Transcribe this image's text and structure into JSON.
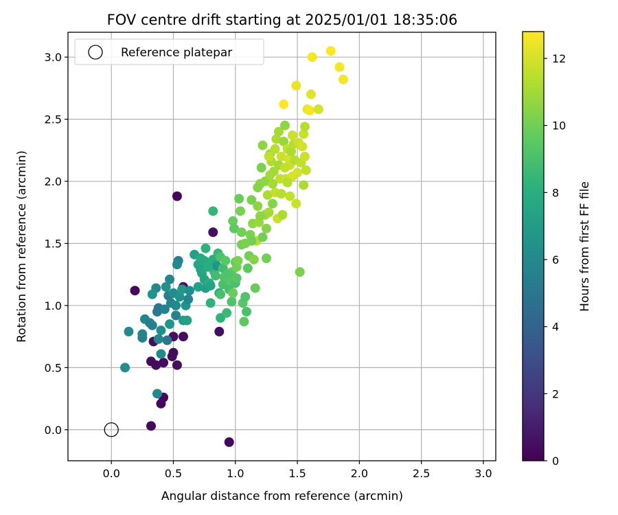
{
  "chart_data": {
    "type": "scatter",
    "title": "FOV centre drift starting at 2025/01/01 18:35:06",
    "xlabel": "Angular distance from reference (arcmin)",
    "ylabel": "Rotation from reference (arcmin)",
    "xlim": [
      -0.35,
      3.1
    ],
    "ylim": [
      -0.25,
      3.2
    ],
    "x_ticks": [
      "0.0",
      "0.5",
      "1.0",
      "1.5",
      "2.0",
      "2.5",
      "3.0"
    ],
    "y_ticks": [
      "0.0",
      "0.5",
      "1.0",
      "1.5",
      "2.0",
      "2.5",
      "3.0"
    ],
    "grid": true,
    "legend": {
      "position": "top-left",
      "entries": [
        "Reference platepar"
      ]
    },
    "reference_point": {
      "x": 0.0,
      "y": 0.0
    },
    "colorbar": {
      "label": "Hours from first FF file",
      "colormap": "viridis",
      "range": [
        0,
        12.8
      ],
      "ticks": [
        "0",
        "2",
        "4",
        "6",
        "8",
        "10",
        "12"
      ]
    },
    "points": [
      {
        "x": 0.53,
        "y": 1.88,
        "h": 0.2
      },
      {
        "x": 0.19,
        "y": 1.12,
        "h": 0.3
      },
      {
        "x": 0.32,
        "y": 0.03,
        "h": 0.3
      },
      {
        "x": 0.95,
        "y": -0.1,
        "h": 0.3
      },
      {
        "x": 0.42,
        "y": 0.26,
        "h": 0.3
      },
      {
        "x": 0.4,
        "y": 0.21,
        "h": 0.3
      },
      {
        "x": 0.32,
        "y": 0.55,
        "h": 0.4
      },
      {
        "x": 0.36,
        "y": 0.52,
        "h": 0.4
      },
      {
        "x": 0.5,
        "y": 0.62,
        "h": 0.4
      },
      {
        "x": 0.49,
        "y": 0.59,
        "h": 0.4
      },
      {
        "x": 0.53,
        "y": 0.52,
        "h": 0.4
      },
      {
        "x": 0.42,
        "y": 0.54,
        "h": 0.4
      },
      {
        "x": 0.58,
        "y": 0.75,
        "h": 0.5
      },
      {
        "x": 0.5,
        "y": 0.75,
        "h": 0.5
      },
      {
        "x": 0.87,
        "y": 0.79,
        "h": 0.5
      },
      {
        "x": 0.82,
        "y": 1.59,
        "h": 0.5
      },
      {
        "x": 0.58,
        "y": 1.15,
        "h": 0.6
      },
      {
        "x": 0.34,
        "y": 0.71,
        "h": 0.5
      },
      {
        "x": 0.37,
        "y": 0.29,
        "h": 6.0
      },
      {
        "x": 0.11,
        "y": 0.5,
        "h": 6.2
      },
      {
        "x": 0.14,
        "y": 0.79,
        "h": 6.0
      },
      {
        "x": 0.25,
        "y": 0.77,
        "h": 5.8
      },
      {
        "x": 0.25,
        "y": 0.74,
        "h": 5.6
      },
      {
        "x": 0.27,
        "y": 0.89,
        "h": 5.8
      },
      {
        "x": 0.31,
        "y": 0.86,
        "h": 5.5
      },
      {
        "x": 0.33,
        "y": 0.84,
        "h": 5.4
      },
      {
        "x": 0.37,
        "y": 0.95,
        "h": 5.2
      },
      {
        "x": 0.38,
        "y": 0.98,
        "h": 5.0
      },
      {
        "x": 0.4,
        "y": 0.61,
        "h": 6.0
      },
      {
        "x": 0.38,
        "y": 0.73,
        "h": 5.8
      },
      {
        "x": 0.4,
        "y": 0.8,
        "h": 6.2
      },
      {
        "x": 0.43,
        "y": 0.97,
        "h": 5.6
      },
      {
        "x": 0.46,
        "y": 1.08,
        "h": 5.4
      },
      {
        "x": 0.45,
        "y": 0.72,
        "h": 5.0
      },
      {
        "x": 0.48,
        "y": 1.02,
        "h": 5.6
      },
      {
        "x": 0.47,
        "y": 1.21,
        "h": 5.8
      },
      {
        "x": 0.5,
        "y": 1.1,
        "h": 6.2
      },
      {
        "x": 0.52,
        "y": 1.0,
        "h": 6.0
      },
      {
        "x": 0.52,
        "y": 0.92,
        "h": 5.5
      },
      {
        "x": 0.54,
        "y": 1.36,
        "h": 5.5
      },
      {
        "x": 0.53,
        "y": 1.33,
        "h": 6.0
      },
      {
        "x": 0.55,
        "y": 1.07,
        "h": 6.5
      },
      {
        "x": 0.57,
        "y": 1.13,
        "h": 6.8
      },
      {
        "x": 0.58,
        "y": 0.88,
        "h": 7.0
      },
      {
        "x": 0.6,
        "y": 1.0,
        "h": 6.5
      },
      {
        "x": 0.61,
        "y": 0.88,
        "h": 7.2
      },
      {
        "x": 0.62,
        "y": 1.05,
        "h": 5.8
      },
      {
        "x": 0.63,
        "y": 1.12,
        "h": 6.2
      },
      {
        "x": 0.36,
        "y": 1.14,
        "h": 6.0
      },
      {
        "x": 0.33,
        "y": 1.09,
        "h": 6.5
      },
      {
        "x": 0.44,
        "y": 1.15,
        "h": 6.4
      },
      {
        "x": 0.47,
        "y": 0.85,
        "h": 6.6
      },
      {
        "x": 0.67,
        "y": 1.41,
        "h": 7.2
      },
      {
        "x": 0.7,
        "y": 1.33,
        "h": 7.5
      },
      {
        "x": 0.72,
        "y": 1.29,
        "h": 7.4
      },
      {
        "x": 0.73,
        "y": 1.26,
        "h": 7.6
      },
      {
        "x": 0.75,
        "y": 1.36,
        "h": 7.8
      },
      {
        "x": 0.76,
        "y": 1.46,
        "h": 8.2
      },
      {
        "x": 0.75,
        "y": 1.21,
        "h": 7.4
      },
      {
        "x": 0.76,
        "y": 1.14,
        "h": 7.0
      },
      {
        "x": 0.79,
        "y": 1.18,
        "h": 8.0
      },
      {
        "x": 0.8,
        "y": 1.02,
        "h": 8.2
      },
      {
        "x": 0.82,
        "y": 1.37,
        "h": 8.0
      },
      {
        "x": 0.82,
        "y": 1.76,
        "h": 8.4
      },
      {
        "x": 0.83,
        "y": 1.27,
        "h": 8.6
      },
      {
        "x": 0.84,
        "y": 1.24,
        "h": 8.8
      },
      {
        "x": 0.85,
        "y": 1.32,
        "h": 6.6
      },
      {
        "x": 0.86,
        "y": 1.42,
        "h": 8.4
      },
      {
        "x": 0.87,
        "y": 1.1,
        "h": 7.4
      },
      {
        "x": 0.88,
        "y": 0.9,
        "h": 8.2
      },
      {
        "x": 0.88,
        "y": 1.09,
        "h": 9.0
      },
      {
        "x": 0.88,
        "y": 1.39,
        "h": 9.2
      },
      {
        "x": 0.9,
        "y": 1.17,
        "h": 9.0
      },
      {
        "x": 0.9,
        "y": 1.3,
        "h": 8.8
      },
      {
        "x": 0.91,
        "y": 1.23,
        "h": 9.2
      },
      {
        "x": 0.92,
        "y": 1.36,
        "h": 9.4
      },
      {
        "x": 0.93,
        "y": 0.94,
        "h": 8.6
      },
      {
        "x": 0.95,
        "y": 1.13,
        "h": 9.0
      },
      {
        "x": 0.96,
        "y": 1.2,
        "h": 9.4
      },
      {
        "x": 0.97,
        "y": 1.27,
        "h": 9.6
      },
      {
        "x": 0.97,
        "y": 1.03,
        "h": 9.2
      },
      {
        "x": 0.98,
        "y": 1.1,
        "h": 9.8
      },
      {
        "x": 0.98,
        "y": 1.68,
        "h": 9.8
      },
      {
        "x": 0.99,
        "y": 1.62,
        "h": 9.6
      },
      {
        "x": 1.0,
        "y": 1.35,
        "h": 9.8
      },
      {
        "x": 1.0,
        "y": 1.18,
        "h": 9.0
      },
      {
        "x": 1.01,
        "y": 1.31,
        "h": 10.0
      },
      {
        "x": 1.02,
        "y": 1.36,
        "h": 10.2
      },
      {
        "x": 1.03,
        "y": 1.86,
        "h": 9.8
      },
      {
        "x": 1.04,
        "y": 1.76,
        "h": 10.2
      },
      {
        "x": 1.05,
        "y": 1.49,
        "h": 10.0
      },
      {
        "x": 1.05,
        "y": 1.59,
        "h": 10.0
      },
      {
        "x": 0.7,
        "y": 1.15,
        "h": 7.2
      },
      {
        "x": 0.72,
        "y": 1.38,
        "h": 7.8
      },
      {
        "x": 0.78,
        "y": 1.31,
        "h": 8.0
      },
      {
        "x": 0.8,
        "y": 1.16,
        "h": 7.4
      },
      {
        "x": 0.94,
        "y": 1.25,
        "h": 9.2
      },
      {
        "x": 1.01,
        "y": 1.22,
        "h": 9.4
      },
      {
        "x": 1.06,
        "y": 1.02,
        "h": 9.4
      },
      {
        "x": 1.07,
        "y": 0.87,
        "h": 9.6
      },
      {
        "x": 1.08,
        "y": 1.07,
        "h": 9.2
      },
      {
        "x": 1.09,
        "y": 0.95,
        "h": 9.0
      },
      {
        "x": 1.1,
        "y": 1.3,
        "h": 9.6
      },
      {
        "x": 1.11,
        "y": 1.4,
        "h": 10.0
      },
      {
        "x": 1.12,
        "y": 1.57,
        "h": 10.2
      },
      {
        "x": 1.13,
        "y": 1.85,
        "h": 10.2
      },
      {
        "x": 1.14,
        "y": 1.66,
        "h": 10.6
      },
      {
        "x": 1.15,
        "y": 1.37,
        "h": 10.4
      },
      {
        "x": 1.16,
        "y": 1.14,
        "h": 9.8
      },
      {
        "x": 1.17,
        "y": 1.52,
        "h": 11.4
      },
      {
        "x": 1.18,
        "y": 1.8,
        "h": 10.6
      },
      {
        "x": 1.19,
        "y": 1.67,
        "h": 10.8
      },
      {
        "x": 1.2,
        "y": 1.98,
        "h": 10.4
      },
      {
        "x": 1.21,
        "y": 2.11,
        "h": 10.2
      },
      {
        "x": 1.22,
        "y": 2.29,
        "h": 10.6
      },
      {
        "x": 1.22,
        "y": 1.55,
        "h": 10.0
      },
      {
        "x": 1.24,
        "y": 1.73,
        "h": 10.8
      },
      {
        "x": 1.24,
        "y": 2.0,
        "h": 10.6
      },
      {
        "x": 1.25,
        "y": 1.38,
        "h": 10.0
      },
      {
        "x": 1.25,
        "y": 1.62,
        "h": 10.4
      },
      {
        "x": 1.26,
        "y": 1.89,
        "h": 11.2
      },
      {
        "x": 1.27,
        "y": 1.75,
        "h": 11.0
      },
      {
        "x": 1.28,
        "y": 2.05,
        "h": 11.0
      },
      {
        "x": 1.28,
        "y": 2.22,
        "h": 10.8
      },
      {
        "x": 1.29,
        "y": 2.16,
        "h": 11.2
      },
      {
        "x": 1.3,
        "y": 1.82,
        "h": 10.4
      },
      {
        "x": 1.31,
        "y": 2.08,
        "h": 11.0
      },
      {
        "x": 1.32,
        "y": 2.26,
        "h": 11.4
      },
      {
        "x": 1.32,
        "y": 1.91,
        "h": 11.6
      },
      {
        "x": 1.33,
        "y": 2.34,
        "h": 11.2
      },
      {
        "x": 1.34,
        "y": 1.7,
        "h": 11.8
      },
      {
        "x": 1.35,
        "y": 2.13,
        "h": 11.0
      },
      {
        "x": 1.35,
        "y": 2.4,
        "h": 11.0
      },
      {
        "x": 1.36,
        "y": 2.02,
        "h": 11.6
      },
      {
        "x": 1.37,
        "y": 1.9,
        "h": 11.4
      },
      {
        "x": 1.37,
        "y": 2.2,
        "h": 11.8
      },
      {
        "x": 1.38,
        "y": 1.73,
        "h": 11.2
      },
      {
        "x": 1.39,
        "y": 2.32,
        "h": 10.8
      },
      {
        "x": 1.4,
        "y": 2.45,
        "h": 10.6
      },
      {
        "x": 1.41,
        "y": 2.02,
        "h": 11.8
      },
      {
        "x": 1.42,
        "y": 2.26,
        "h": 11.6
      },
      {
        "x": 1.43,
        "y": 2.18,
        "h": 12.0
      },
      {
        "x": 1.44,
        "y": 2.13,
        "h": 11.8
      },
      {
        "x": 1.45,
        "y": 2.24,
        "h": 11.2
      },
      {
        "x": 1.46,
        "y": 2.04,
        "h": 12.0
      },
      {
        "x": 1.47,
        "y": 2.3,
        "h": 11.4
      },
      {
        "x": 1.48,
        "y": 2.17,
        "h": 11.4
      },
      {
        "x": 1.49,
        "y": 1.82,
        "h": 11.8
      },
      {
        "x": 1.5,
        "y": 2.07,
        "h": 12.0
      },
      {
        "x": 1.51,
        "y": 2.31,
        "h": 11.8
      },
      {
        "x": 1.52,
        "y": 1.27,
        "h": 10.2
      },
      {
        "x": 1.53,
        "y": 2.15,
        "h": 11.6
      },
      {
        "x": 1.54,
        "y": 2.28,
        "h": 12.0
      },
      {
        "x": 1.55,
        "y": 1.97,
        "h": 11.2
      },
      {
        "x": 1.55,
        "y": 2.38,
        "h": 11.8
      },
      {
        "x": 1.56,
        "y": 2.44,
        "h": 11.4
      },
      {
        "x": 1.56,
        "y": 2.2,
        "h": 11.8
      },
      {
        "x": 1.57,
        "y": 2.09,
        "h": 11.6
      },
      {
        "x": 1.58,
        "y": 2.58,
        "h": 12.4
      },
      {
        "x": 1.6,
        "y": 2.57,
        "h": 12.6
      },
      {
        "x": 1.27,
        "y": 2.2,
        "h": 11.6
      },
      {
        "x": 1.4,
        "y": 2.11,
        "h": 11.6
      },
      {
        "x": 1.42,
        "y": 1.99,
        "h": 11.4
      },
      {
        "x": 1.44,
        "y": 1.88,
        "h": 11.6
      },
      {
        "x": 1.46,
        "y": 2.37,
        "h": 11.8
      },
      {
        "x": 1.3,
        "y": 1.98,
        "h": 11.0
      },
      {
        "x": 1.18,
        "y": 1.95,
        "h": 10.4
      },
      {
        "x": 1.2,
        "y": 1.72,
        "h": 10.6
      },
      {
        "x": 1.13,
        "y": 1.52,
        "h": 10.0
      },
      {
        "x": 1.08,
        "y": 1.5,
        "h": 10.2
      },
      {
        "x": 1.49,
        "y": 2.77,
        "h": 12.4
      },
      {
        "x": 1.61,
        "y": 2.7,
        "h": 12.2
      },
      {
        "x": 1.62,
        "y": 3.0,
        "h": 12.6
      },
      {
        "x": 1.67,
        "y": 2.58,
        "h": 12.0
      },
      {
        "x": 1.77,
        "y": 3.05,
        "h": 12.8
      },
      {
        "x": 1.84,
        "y": 2.92,
        "h": 12.6
      },
      {
        "x": 1.87,
        "y": 2.82,
        "h": 12.6
      },
      {
        "x": 1.39,
        "y": 2.62,
        "h": 12.8
      }
    ]
  }
}
